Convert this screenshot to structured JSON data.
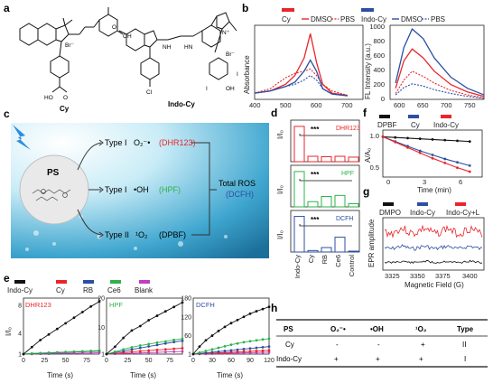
{
  "panel_labels": [
    "a",
    "b",
    "c",
    "d",
    "e",
    "f",
    "g",
    "h"
  ],
  "a": {
    "compounds": [
      "Cy",
      "Indo-Cy"
    ],
    "atom_labels": [
      "Br⁻",
      "OH",
      "O",
      "NH",
      "HN",
      "Cl",
      "N⁺",
      "Br⁻",
      "OH",
      "I",
      "I",
      "HO",
      "O"
    ]
  },
  "colors": {
    "red": "#e8262a",
    "blue": "#2c4fa3",
    "green": "#2db34a",
    "magenta": "#c23dbf",
    "black": "#111111"
  },
  "b": {
    "legend_left": {
      "title": "Cy",
      "items": [
        "DMSO",
        "PBS"
      ]
    },
    "legend_right": {
      "title": "Indo-Cy",
      "items": [
        "DMSO",
        "PBS"
      ]
    },
    "ylabel_left": "Absorbance",
    "ylabel_right": "FL Intensity (a.u.)",
    "xticks_left": [
      "400",
      "500",
      "600",
      "700"
    ],
    "xticks_right": [
      "600",
      "650",
      "700",
      "750"
    ],
    "yticks_right": [
      "0",
      "200",
      "400",
      "600",
      "800",
      "1000"
    ]
  },
  "c": {
    "center_label": "PS",
    "type_I_1": "Type I",
    "species_1": "O₂⁻•",
    "probe_1": "(DHR123)",
    "type_I_2": "Type I",
    "species_2": "•OH",
    "probe_2": "(HPF)",
    "type_II": "Type II",
    "species_3": "¹O₂",
    "probe_3": "(DPBF)",
    "total": "Total ROS",
    "total_probe": "(DCFH)"
  },
  "d": {
    "probes": [
      "DHR123",
      "HPF",
      "DCFH"
    ],
    "sig": "***",
    "ylabel": "I/I₀",
    "categories": [
      "Indo-Cy",
      "Cy",
      "RB",
      "Ce6",
      "Control"
    ]
  },
  "e": {
    "legend": [
      "Indo-Cy",
      "Cy",
      "RB",
      "Ce6",
      "Blank"
    ],
    "ylabel": "I/I₀",
    "xlabel": "Time (s)",
    "titles": [
      "DHR123",
      "HPF",
      "DCFH"
    ]
  },
  "f": {
    "legend": [
      "DPBF",
      "Cy",
      "Indo-Cy"
    ],
    "ylabel": "A/A₀",
    "xlabel": "Time (min)",
    "xticks": [
      "0",
      "3",
      "6"
    ],
    "yticks": [
      "0.5",
      "1.0"
    ]
  },
  "g": {
    "legend": [
      "DMPO",
      "Indo-Cy",
      "Indo-Cy+L"
    ],
    "ylabel": "EPR amplitude",
    "xlabel": "Magnetic Field (G)",
    "xticks": [
      "3325",
      "3350",
      "3375",
      "3400"
    ]
  },
  "h": {
    "headers": [
      "PS",
      "O₂⁻•",
      "•OH",
      "¹O₂",
      "Type"
    ],
    "rows": [
      [
        "Cy",
        "-",
        "-",
        "+",
        "II"
      ],
      [
        "Indo-Cy",
        "+",
        "+",
        "+",
        "I"
      ]
    ]
  },
  "chart_data": [
    {
      "type": "line",
      "panel": "b-left",
      "xlabel": "",
      "ylabel": "Absorbance",
      "xlim": [
        400,
        750
      ],
      "series": [
        {
          "name": "Cy DMSO",
          "x": [
            400,
            450,
            500,
            530,
            560,
            580,
            600,
            620,
            650,
            700
          ],
          "values": [
            0.1,
            0.15,
            0.3,
            0.5,
            0.9,
            1.45,
            0.8,
            0.3,
            0.1,
            0.05
          ]
        },
        {
          "name": "Cy PBS",
          "x": [
            400,
            450,
            500,
            530,
            560,
            580,
            600,
            620,
            650,
            700
          ],
          "values": [
            0.1,
            0.2,
            0.45,
            0.55,
            0.6,
            0.65,
            0.5,
            0.3,
            0.15,
            0.05
          ]
        },
        {
          "name": "Indo-Cy DMSO",
          "x": [
            400,
            450,
            500,
            530,
            560,
            580,
            600,
            620,
            650,
            700
          ],
          "values": [
            0.1,
            0.15,
            0.25,
            0.35,
            0.6,
            0.85,
            0.6,
            0.2,
            0.08,
            0.04
          ]
        },
        {
          "name": "Indo-Cy PBS",
          "x": [
            400,
            450,
            500,
            530,
            560,
            580,
            600,
            620,
            650,
            700
          ],
          "values": [
            0.1,
            0.15,
            0.25,
            0.3,
            0.4,
            0.5,
            0.4,
            0.2,
            0.08,
            0.04
          ]
        }
      ]
    },
    {
      "type": "line",
      "panel": "b-right",
      "ylabel": "FL Intensity (a.u.)",
      "xlim": [
        580,
        750
      ],
      "ylim": [
        0,
        1000
      ],
      "series": [
        {
          "name": "Cy DMSO",
          "x": [
            590,
            605,
            620,
            640,
            660,
            690,
            720,
            750
          ],
          "values": [
            150,
            520,
            680,
            560,
            380,
            200,
            100,
            40
          ]
        },
        {
          "name": "Cy PBS",
          "x": [
            590,
            605,
            620,
            640,
            660,
            690,
            720,
            750
          ],
          "values": [
            80,
            260,
            380,
            310,
            220,
            120,
            60,
            20
          ]
        },
        {
          "name": "Indo-Cy DMSO",
          "x": [
            590,
            605,
            620,
            640,
            660,
            690,
            720,
            750
          ],
          "values": [
            220,
            700,
            950,
            820,
            560,
            300,
            150,
            60
          ]
        },
        {
          "name": "Indo-Cy PBS",
          "x": [
            590,
            605,
            620,
            640,
            660,
            690,
            720,
            750
          ],
          "values": [
            60,
            160,
            210,
            180,
            130,
            80,
            40,
            15
          ]
        }
      ]
    },
    {
      "type": "bar",
      "panel": "d",
      "categories": [
        "Indo-Cy",
        "Cy",
        "RB",
        "Ce6",
        "Control"
      ],
      "series": [
        {
          "name": "DHR123",
          "values": [
            8.5,
            1.3,
            1.2,
            1.3,
            1.1
          ]
        },
        {
          "name": "HPF",
          "values": [
            17,
            2.5,
            5,
            5.5,
            1.5
          ]
        },
        {
          "name": "DCFH",
          "values": [
            120,
            5,
            15,
            50,
            3
          ]
        }
      ]
    },
    {
      "type": "line",
      "panel": "e-DHR123",
      "xlabel": "Time (s)",
      "ylabel": "I/I₀",
      "xlim": [
        0,
        90
      ],
      "ylim": [
        1,
        9
      ],
      "x": [
        0,
        10,
        20,
        30,
        40,
        50,
        60,
        70,
        80,
        90
      ],
      "series": [
        {
          "name": "Indo-Cy",
          "values": [
            1,
            2,
            3,
            3.8,
            4.6,
            5.4,
            6.2,
            7,
            7.8,
            8.5
          ]
        },
        {
          "name": "Cy",
          "values": [
            1,
            1.05,
            1.1,
            1.15,
            1.2,
            1.25,
            1.3,
            1.35,
            1.4,
            1.45
          ]
        },
        {
          "name": "RB",
          "values": [
            1,
            1.05,
            1.1,
            1.15,
            1.2,
            1.25,
            1.3,
            1.35,
            1.4,
            1.45
          ]
        },
        {
          "name": "Ce6",
          "values": [
            1,
            1.1,
            1.15,
            1.2,
            1.25,
            1.3,
            1.35,
            1.4,
            1.45,
            1.5
          ]
        },
        {
          "name": "Blank",
          "values": [
            1,
            1,
            1.05,
            1.05,
            1.1,
            1.1,
            1.1,
            1.15,
            1.15,
            1.2
          ]
        }
      ]
    },
    {
      "type": "line",
      "panel": "e-HPF",
      "xlabel": "Time (s)",
      "xlim": [
        0,
        90
      ],
      "ylim": [
        1,
        20
      ],
      "x": [
        0,
        10,
        20,
        30,
        40,
        50,
        60,
        70,
        80,
        90
      ],
      "series": [
        {
          "name": "Indo-Cy",
          "values": [
            1,
            3.5,
            6.5,
            9,
            10.5,
            12.5,
            14,
            15.5,
            17,
            18.5
          ]
        },
        {
          "name": "Cy",
          "values": [
            1,
            1.2,
            1.5,
            1.8,
            2,
            2.2,
            2.4,
            2.6,
            2.8,
            3
          ]
        },
        {
          "name": "RB",
          "values": [
            1,
            1.5,
            2,
            2.6,
            3.1,
            3.6,
            4.1,
            4.6,
            5.1,
            5.5
          ]
        },
        {
          "name": "Ce6",
          "values": [
            1,
            1.8,
            2.6,
            3.3,
            3.9,
            4.4,
            4.9,
            5.3,
            5.8,
            6.2
          ]
        },
        {
          "name": "Blank",
          "values": [
            1,
            1.1,
            1.2,
            1.3,
            1.4,
            1.5,
            1.6,
            1.7,
            1.8,
            1.9
          ]
        }
      ]
    },
    {
      "type": "line",
      "panel": "e-DCFH",
      "xlabel": "Time (s)",
      "xlim": [
        0,
        120
      ],
      "ylim": [
        1,
        180
      ],
      "x": [
        0,
        10,
        20,
        30,
        40,
        50,
        60,
        70,
        80,
        90,
        100,
        110,
        120
      ],
      "series": [
        {
          "name": "Indo-Cy",
          "values": [
            1,
            25,
            45,
            60,
            75,
            88,
            100,
            110,
            120,
            130,
            138,
            145,
            152
          ]
        },
        {
          "name": "Cy",
          "values": [
            1,
            2,
            3,
            4,
            5,
            6,
            7,
            8,
            9,
            10,
            11,
            12,
            13
          ]
        },
        {
          "name": "RB",
          "values": [
            1,
            3,
            5,
            7,
            9,
            11,
            13,
            15,
            17,
            19,
            21,
            23,
            25
          ]
        },
        {
          "name": "Ce6",
          "values": [
            1,
            6,
            11,
            16,
            21,
            26,
            31,
            35,
            39,
            42,
            45,
            48,
            50
          ]
        },
        {
          "name": "Blank",
          "values": [
            1,
            1.5,
            2,
            2.5,
            3,
            3.5,
            4,
            4.5,
            5,
            5.5,
            6,
            6.5,
            7
          ]
        }
      ]
    },
    {
      "type": "line",
      "panel": "f",
      "xlabel": "Time (min)",
      "ylabel": "A/A₀",
      "xlim": [
        0,
        8
      ],
      "ylim": [
        0.4,
        1.1
      ],
      "x": [
        0,
        1,
        2,
        3,
        4,
        5,
        6,
        7
      ],
      "series": [
        {
          "name": "DPBF",
          "values": [
            1.0,
            0.99,
            0.98,
            0.97,
            0.96,
            0.95,
            0.94,
            0.93
          ]
        },
        {
          "name": "Cy",
          "values": [
            1.0,
            0.93,
            0.86,
            0.79,
            0.73,
            0.67,
            0.62,
            0.57
          ]
        },
        {
          "name": "Indo-Cy",
          "values": [
            1.0,
            0.92,
            0.84,
            0.76,
            0.68,
            0.61,
            0.54,
            0.48
          ]
        }
      ]
    }
  ]
}
